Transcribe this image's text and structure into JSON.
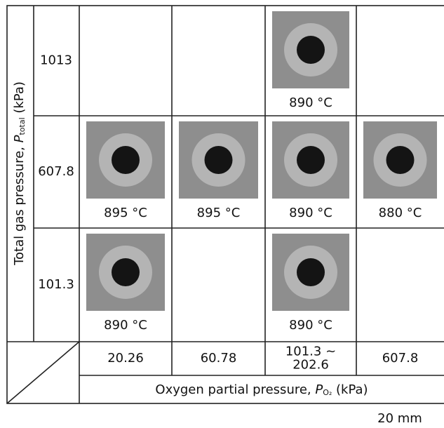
{
  "y_axis_label": {
    "text": "Total gas pressure, ",
    "symbol": "P",
    "subscript": "total",
    "unit": " (kPa)"
  },
  "x_axis_label": {
    "text": "Oxygen partial pressure, ",
    "symbol": "P",
    "subscript": "O₂",
    "unit": " (kPa)"
  },
  "columns": [
    [
      "20.26"
    ],
    [
      "60.78"
    ],
    [
      "101.3 ~",
      "202.6"
    ],
    [
      "607.8"
    ]
  ],
  "rows": [
    {
      "label": "1013",
      "cells": [
        null,
        null,
        "890 °C",
        null
      ]
    },
    {
      "label": "607.8",
      "cells": [
        "895 °C",
        "895 °C",
        "890 °C",
        "880 °C"
      ]
    },
    {
      "label": "101.3",
      "cells": [
        "890 °C",
        null,
        "890 °C",
        null
      ]
    }
  ],
  "scale_label": "20 mm"
}
